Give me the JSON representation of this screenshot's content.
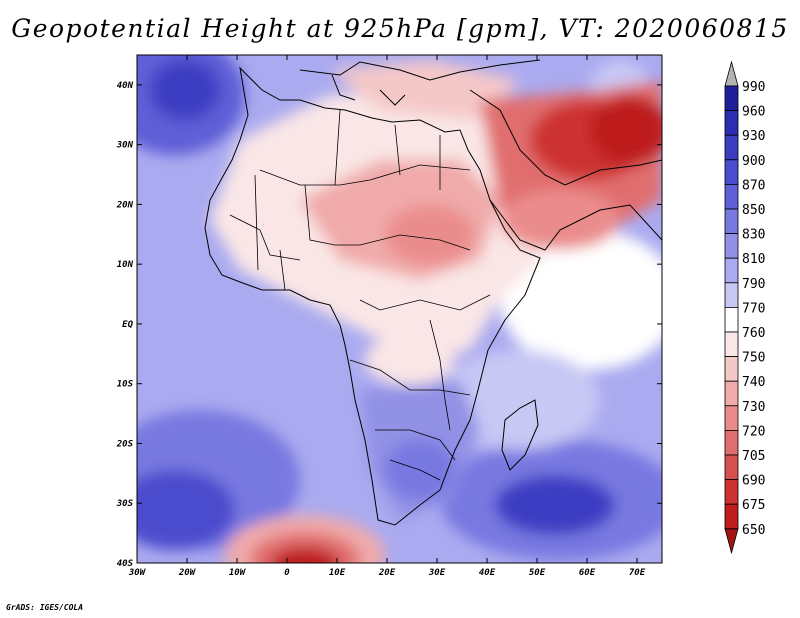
{
  "title": "Geopotential Height at 925hPa [gpm], VT: 2020060815",
  "footer": "GrADS: IGES/COLA",
  "map": {
    "region": "Africa and Middle East",
    "variable": "Geopotential Height 925hPa",
    "units": "gpm",
    "valid_time": "2020060815",
    "lon_range": [
      -30,
      75
    ],
    "lat_range": [
      -40,
      45
    ],
    "x_ticks": [
      "30W",
      "20W",
      "10W",
      "0",
      "10E",
      "20E",
      "30E",
      "40E",
      "50E",
      "60E",
      "70E"
    ],
    "y_ticks": [
      "40N",
      "30N",
      "20N",
      "10N",
      "EQ",
      "10S",
      "20S",
      "30S",
      "40S"
    ]
  },
  "colorbar": {
    "levels": [
      "990",
      "960",
      "930",
      "900",
      "870",
      "850",
      "830",
      "810",
      "790",
      "770",
      "760",
      "750",
      "740",
      "730",
      "720",
      "705",
      "690",
      "675",
      "650"
    ],
    "colors": [
      "#b4b4b4",
      "#1e1e9b",
      "#2d2db4",
      "#3c3cc3",
      "#4b4bcd",
      "#5f5fd7",
      "#7878e1",
      "#9191e6",
      "#aaaaf0",
      "#c8c8f5",
      "#ffffff",
      "#fae6e6",
      "#f5c8c8",
      "#f0aaaa",
      "#eb8c8c",
      "#e16e6e",
      "#d75050",
      "#cd3232",
      "#be1e1e",
      "#a01414"
    ]
  }
}
